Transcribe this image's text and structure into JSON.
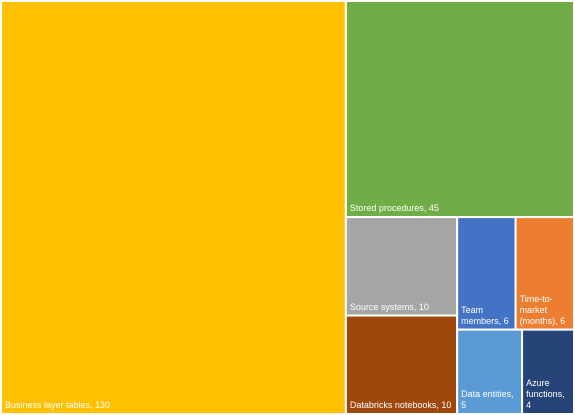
{
  "chart_data": {
    "type": "treemap",
    "labels": [
      "Business layer tables, 130",
      "Stored procedures, 45",
      "Source systems, 10",
      "Databricks notebooks, 10",
      "Team members, 6",
      "Time-to-market (months), 6",
      "Data entities, 5",
      "Azure functions, 4"
    ],
    "values": [
      130,
      45,
      10,
      10,
      6,
      6,
      5,
      4
    ],
    "colors": [
      "#ffc000",
      "#70ad47",
      "#a5a5a5",
      "#9e480e",
      "#4472c4",
      "#ed7d31",
      "#5b9bd5",
      "#264478"
    ]
  }
}
